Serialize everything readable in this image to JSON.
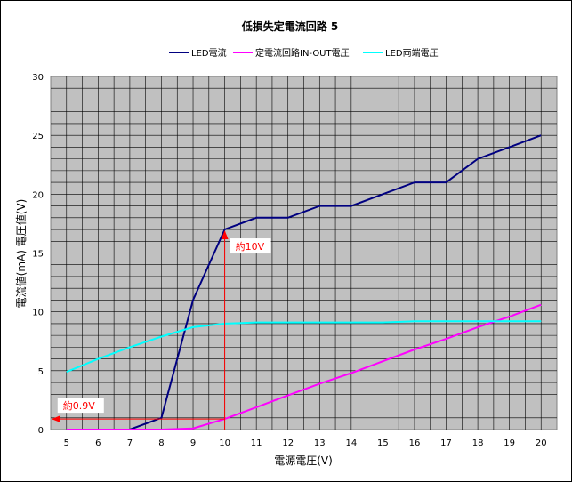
{
  "chart_data": {
    "type": "line",
    "title": "低損失定電流回路 5",
    "xlabel": "電源電圧(V)",
    "ylabel": "電流値(mA) 電圧値(V)",
    "x": [
      5,
      6,
      7,
      8,
      9,
      10,
      11,
      12,
      13,
      14,
      15,
      16,
      17,
      18,
      19,
      20
    ],
    "xlim": [
      5,
      20
    ],
    "ylim": [
      0,
      30
    ],
    "yticks": [
      0,
      5,
      10,
      15,
      20,
      25,
      30
    ],
    "grid": true,
    "legend_position": "top",
    "plot_background": "#c0c0c0",
    "series": [
      {
        "name": "LED電流",
        "color": "#000080",
        "values": [
          0,
          0,
          0,
          1,
          11,
          17,
          18,
          18,
          19,
          19,
          20,
          21,
          21,
          23,
          24,
          25
        ]
      },
      {
        "name": "定電流回路IN-OUT電圧",
        "color": "#ff00ff",
        "values": [
          0,
          0,
          0,
          0,
          0.1,
          0.9,
          1.9,
          2.9,
          3.9,
          4.8,
          5.8,
          6.8,
          7.7,
          8.7,
          9.6,
          10.6
        ]
      },
      {
        "name": "LED両端電圧",
        "color": "#00ffff",
        "values": [
          4.9,
          6.0,
          7.0,
          7.9,
          8.7,
          9.0,
          9.1,
          9.1,
          9.1,
          9.1,
          9.1,
          9.2,
          9.2,
          9.2,
          9.2,
          9.2
        ]
      }
    ],
    "annotations": [
      {
        "text": "約10V",
        "x": 10,
        "y": 17,
        "kind": "vertical-arrow-up",
        "color": "#ff0000"
      },
      {
        "text": "約0.9V",
        "x": 10,
        "y": 0.9,
        "kind": "horizontal-arrow-left",
        "color": "#ff0000"
      }
    ]
  }
}
